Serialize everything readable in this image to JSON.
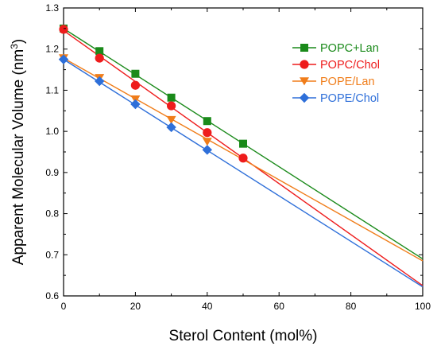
{
  "chart_data": {
    "type": "scatter",
    "title": "",
    "xlabel": "Sterol Content (mol%)",
    "ylabel": "Apparent Molecular Volume (nm",
    "ylabel_sup": "3",
    "ylabel_close": ")",
    "xlim": [
      0,
      100
    ],
    "ylim": [
      0.6,
      1.3
    ],
    "x_ticks": [
      0,
      20,
      40,
      60,
      80,
      100
    ],
    "y_ticks": [
      0.6,
      0.7,
      0.8,
      0.9,
      1.0,
      1.1,
      1.2,
      1.3
    ],
    "x_tick_labels": [
      "0",
      "20",
      "40",
      "60",
      "80",
      "100"
    ],
    "y_tick_labels": [
      "0.6",
      "0.7",
      "0.8",
      "0.9",
      "1.0",
      "1.1",
      "1.2",
      "1.3"
    ],
    "grid": false,
    "legend_position": "top-right",
    "series": [
      {
        "name": "POPC+Lan",
        "color": "#1a8a1a",
        "marker": "square",
        "x": [
          0,
          10,
          20,
          30,
          40,
          50
        ],
        "y": [
          1.25,
          1.195,
          1.14,
          1.082,
          1.025,
          0.97
        ],
        "fit": [
          [
            0,
            1.25
          ],
          [
            100,
            0.69
          ]
        ]
      },
      {
        "name": "POPC/Chol",
        "color": "#ee1c1c",
        "marker": "circle",
        "x": [
          0,
          10,
          20,
          30,
          40,
          50
        ],
        "y": [
          1.248,
          1.178,
          1.112,
          1.062,
          0.997,
          0.935
        ],
        "fit": [
          [
            0,
            1.245
          ],
          [
            100,
            0.625
          ]
        ]
      },
      {
        "name": "POPE/Lan",
        "color": "#f07d1a",
        "marker": "triangle-down",
        "x": [
          0,
          10,
          20,
          30,
          40
        ],
        "y": [
          1.178,
          1.13,
          1.078,
          1.028,
          0.975
        ],
        "fit": [
          [
            0,
            1.178
          ],
          [
            100,
            0.685
          ]
        ]
      },
      {
        "name": "POPE/Chol",
        "color": "#2e6fd9",
        "marker": "diamond",
        "x": [
          0,
          10,
          20,
          30,
          40
        ],
        "y": [
          1.175,
          1.122,
          1.066,
          1.01,
          0.955
        ],
        "fit": [
          [
            0,
            1.175
          ],
          [
            100,
            0.622
          ]
        ]
      }
    ]
  }
}
